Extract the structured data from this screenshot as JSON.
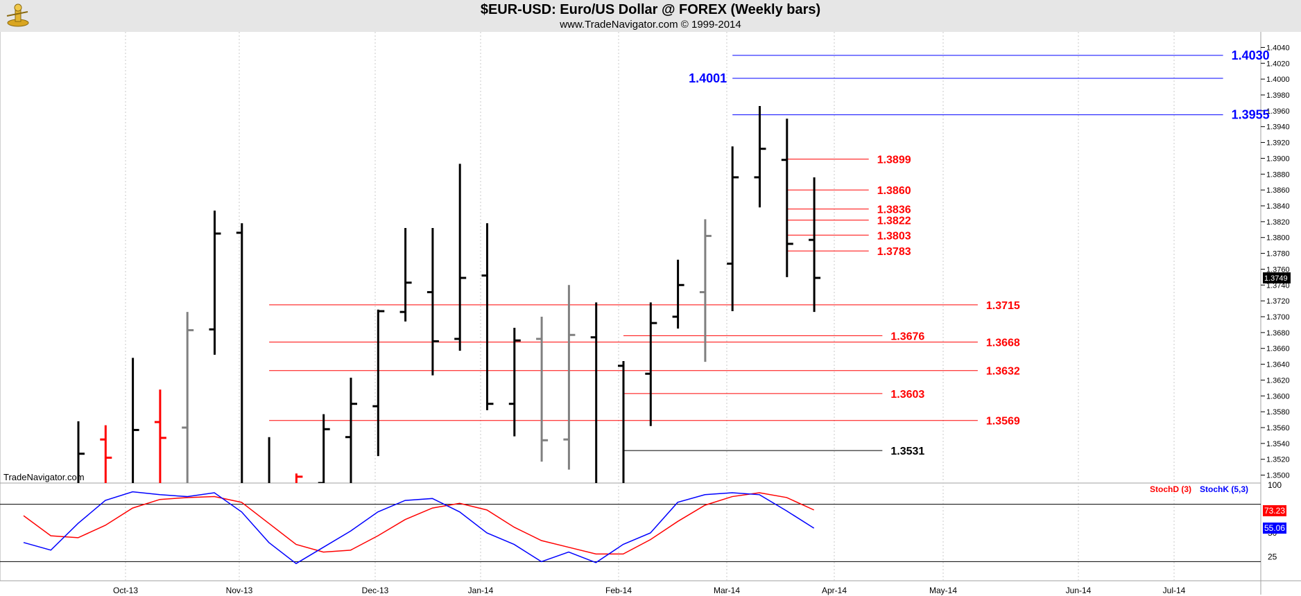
{
  "header": {
    "title": "$EUR-USD:  Euro/US Dollar @ FOREX  (Weekly bars)",
    "subtitle": "www.TradeNavigator.com © 1999-2014",
    "watermark": "TradeNavigator.com"
  },
  "colors": {
    "up": "#000000",
    "down": "#ff0000",
    "neutral": "#808080",
    "blue": "#0000ff",
    "red": "#ff0000"
  },
  "chart_data": [
    {
      "type": "ohlc",
      "title": "$EUR-USD:  Euro/US Dollar @ FOREX  (Weekly bars)",
      "x_ticks": [
        "Oct-13",
        "Nov-13",
        "Dec-13",
        "Jan-14",
        "Feb-14",
        "Mar-14",
        "Apr-14",
        "May-14",
        "Jun-14",
        "Jul-14"
      ],
      "y_range": [
        1.349,
        1.405
      ],
      "y_ticks": [
        "1.3500",
        "1.3520",
        "1.3540",
        "1.3560",
        "1.3580",
        "1.3600",
        "1.3620",
        "1.3640",
        "1.3660",
        "1.3680",
        "1.3700",
        "1.3720",
        "1.3740",
        "1.3760",
        "1.3780",
        "1.3800",
        "1.3820",
        "1.3840",
        "1.3860",
        "1.3880",
        "1.3900",
        "1.3920",
        "1.3940",
        "1.3960",
        "1.3980",
        "1.4000",
        "1.4020",
        "1.4040"
      ],
      "last_price": "1.3749",
      "bars": [
        {
          "week": 0,
          "open": 1.348,
          "high": 1.3568,
          "low": 1.34,
          "close": 1.3527,
          "color": "black"
        },
        {
          "week": 1,
          "open": 1.3545,
          "high": 1.3563,
          "low": 1.34,
          "close": 1.3522,
          "color": "red"
        },
        {
          "week": 2,
          "open": 1.34,
          "high": 1.3648,
          "low": 1.34,
          "close": 1.3557,
          "color": "black"
        },
        {
          "week": 3,
          "open": 1.3567,
          "high": 1.3608,
          "low": 1.34,
          "close": 1.3547,
          "color": "red"
        },
        {
          "week": 4,
          "open": 1.356,
          "high": 1.3706,
          "low": 1.34,
          "close": 1.3683,
          "color": "gray"
        },
        {
          "week": 5,
          "open": 1.3684,
          "high": 1.3834,
          "low": 1.3652,
          "close": 1.3805,
          "color": "black"
        },
        {
          "week": 6,
          "open": 1.3806,
          "high": 1.3818,
          "low": 1.34,
          "close": 1.345,
          "color": "black"
        },
        {
          "week": 7,
          "open": 1.34,
          "high": 1.3548,
          "low": 1.34,
          "close": 1.348,
          "color": "black"
        },
        {
          "week": 8,
          "open": 1.343,
          "high": 1.3502,
          "low": 1.34,
          "close": 1.3498,
          "color": "red"
        },
        {
          "week": 9,
          "open": 1.349,
          "high": 1.3577,
          "low": 1.34,
          "close": 1.3558,
          "color": "black"
        },
        {
          "week": 10,
          "open": 1.3548,
          "high": 1.3623,
          "low": 1.34,
          "close": 1.359,
          "color": "black"
        },
        {
          "week": 11,
          "open": 1.3587,
          "high": 1.3709,
          "low": 1.3524,
          "close": 1.3707,
          "color": "black"
        },
        {
          "week": 12,
          "open": 1.3706,
          "high": 1.3812,
          "low": 1.3694,
          "close": 1.3743,
          "color": "black"
        },
        {
          "week": 13,
          "open": 1.3731,
          "high": 1.3812,
          "low": 1.3626,
          "close": 1.3669,
          "color": "black"
        },
        {
          "week": 14,
          "open": 1.3672,
          "high": 1.3893,
          "low": 1.3657,
          "close": 1.3749,
          "color": "black"
        },
        {
          "week": 15,
          "open": 1.3752,
          "high": 1.3818,
          "low": 1.3582,
          "close": 1.359,
          "color": "black"
        },
        {
          "week": 16,
          "open": 1.359,
          "high": 1.3686,
          "low": 1.3549,
          "close": 1.367,
          "color": "black"
        },
        {
          "week": 17,
          "open": 1.3672,
          "high": 1.37,
          "low": 1.3517,
          "close": 1.3544,
          "color": "gray"
        },
        {
          "week": 18,
          "open": 1.3545,
          "high": 1.374,
          "low": 1.3507,
          "close": 1.3677,
          "color": "gray"
        },
        {
          "week": 19,
          "open": 1.3674,
          "high": 1.3718,
          "low": 1.34,
          "close": 1.348,
          "color": "black"
        },
        {
          "week": 20,
          "open": 1.3638,
          "high": 1.3644,
          "low": 1.34,
          "close": 1.3485,
          "color": "black"
        },
        {
          "week": 21,
          "open": 1.3628,
          "high": 1.3718,
          "low": 1.3562,
          "close": 1.3692,
          "color": "black"
        },
        {
          "week": 22,
          "open": 1.37,
          "high": 1.3772,
          "low": 1.3685,
          "close": 1.374,
          "color": "black"
        },
        {
          "week": 23,
          "open": 1.3731,
          "high": 1.3823,
          "low": 1.3643,
          "close": 1.3802,
          "color": "gray"
        },
        {
          "week": 24,
          "open": 1.3767,
          "high": 1.3915,
          "low": 1.3707,
          "close": 1.3876,
          "color": "black"
        },
        {
          "week": 25,
          "open": 1.3876,
          "high": 1.3966,
          "low": 1.3838,
          "close": 1.3912,
          "color": "black"
        },
        {
          "week": 26,
          "open": 1.3898,
          "high": 1.395,
          "low": 1.375,
          "close": 1.3792,
          "color": "black"
        },
        {
          "week": 27,
          "open": 1.3797,
          "high": 1.3876,
          "low": 1.3706,
          "close": 1.3749,
          "color": "black"
        }
      ],
      "levels": [
        {
          "label": "1.4030",
          "value": 1.403,
          "color": "blue",
          "from": 24,
          "to": 42,
          "label_side": "right",
          "large": true
        },
        {
          "label": "1.4001",
          "value": 1.4001,
          "color": "blue",
          "from": 24,
          "to": 42,
          "label_side": "left",
          "large": true
        },
        {
          "label": "1.3955",
          "value": 1.3955,
          "color": "blue",
          "from": 24,
          "to": 42,
          "label_side": "right",
          "large": true
        },
        {
          "label": "1.3899",
          "value": 1.3899,
          "color": "red",
          "from": 26,
          "to": 29,
          "label_side": "right"
        },
        {
          "label": "1.3860",
          "value": 1.386,
          "color": "red",
          "from": 26,
          "to": 29,
          "label_side": "right"
        },
        {
          "label": "1.3836",
          "value": 1.3836,
          "color": "red",
          "from": 26,
          "to": 29,
          "label_side": "right"
        },
        {
          "label": "1.3822",
          "value": 1.3822,
          "color": "red",
          "from": 26,
          "to": 29,
          "label_side": "right"
        },
        {
          "label": "1.3803",
          "value": 1.3803,
          "color": "red",
          "from": 26,
          "to": 29,
          "label_side": "right"
        },
        {
          "label": "1.3783",
          "value": 1.3783,
          "color": "red",
          "from": 26,
          "to": 29,
          "label_side": "right"
        },
        {
          "label": "1.3715",
          "value": 1.3715,
          "color": "red",
          "from": 7,
          "to": 33,
          "label_side": "right"
        },
        {
          "label": "1.3676",
          "value": 1.3676,
          "color": "red",
          "from": 20,
          "to": 29.5,
          "label_side": "right"
        },
        {
          "label": "1.3668",
          "value": 1.3668,
          "color": "red",
          "from": 7,
          "to": 33,
          "label_side": "right"
        },
        {
          "label": "1.3632",
          "value": 1.3632,
          "color": "red",
          "from": 7,
          "to": 33,
          "label_side": "right"
        },
        {
          "label": "1.3603",
          "value": 1.3603,
          "color": "red",
          "from": 20,
          "to": 29.5,
          "label_side": "right"
        },
        {
          "label": "1.3569",
          "value": 1.3569,
          "color": "red",
          "from": 7,
          "to": 33,
          "label_side": "right"
        },
        {
          "label": "1.3531",
          "value": 1.3531,
          "color": "black",
          "from": 20,
          "to": 29.5,
          "label_side": "right"
        }
      ]
    },
    {
      "type": "line",
      "title": "",
      "legend": [
        "StochD (3)",
        "StochK (5,3)"
      ],
      "y_range": [
        0,
        100
      ],
      "y_ticks": [
        "100",
        "75",
        "50",
        "25"
      ],
      "reference_lines": [
        80,
        20
      ],
      "last_values": {
        "d": "73.23",
        "k": "55.06"
      },
      "series": [
        {
          "name": "StochD (3)",
          "color": "red",
          "values": [
            68,
            47,
            45,
            58,
            76,
            85,
            87,
            88,
            82,
            60,
            38,
            30,
            32,
            47,
            64,
            76,
            81,
            74,
            56,
            42,
            35,
            28,
            28,
            43,
            62,
            79,
            88,
            92,
            87,
            74
          ]
        },
        {
          "name": "StochK (5,3)",
          "color": "blue",
          "values": [
            40,
            32,
            60,
            84,
            93,
            90,
            88,
            92,
            72,
            40,
            18,
            35,
            52,
            72,
            84,
            86,
            72,
            50,
            38,
            20,
            30,
            19,
            38,
            50,
            82,
            90,
            92,
            90,
            73,
            55
          ]
        }
      ]
    }
  ]
}
